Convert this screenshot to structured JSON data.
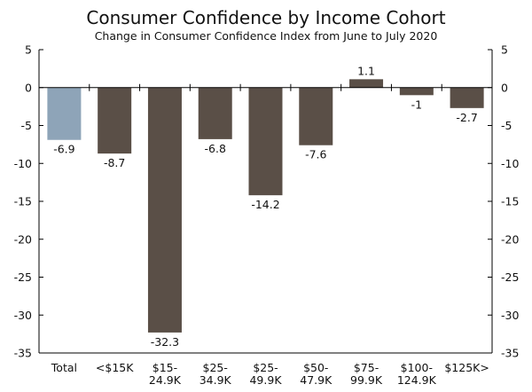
{
  "chart_data": {
    "type": "bar",
    "title": "Consumer Confidence by Income Cohort",
    "subtitle": "Change in Consumer Confidence Index from June to July 2020",
    "xlabel": "",
    "ylabel": "",
    "ylim": [
      -35,
      5
    ],
    "yticks": [
      "5",
      "0",
      "-5",
      "-10",
      "-15",
      "-20",
      "-25",
      "-30",
      "-35"
    ],
    "ytick_values": [
      5,
      0,
      -5,
      -10,
      -15,
      -20,
      -25,
      -30,
      -35
    ],
    "categories": [
      [
        "Total"
      ],
      [
        "<$15K"
      ],
      [
        "$15-",
        "24.9K"
      ],
      [
        "$25-",
        "34.9K"
      ],
      [
        "$25-",
        "49.9K"
      ],
      [
        "$50-",
        "47.9K"
      ],
      [
        "$75-",
        "99.9K"
      ],
      [
        "$100-",
        "124.9K"
      ],
      [
        "$125K>"
      ]
    ],
    "values": [
      -6.9,
      -8.7,
      -32.3,
      -6.8,
      -14.2,
      -7.6,
      1.1,
      -1,
      -2.7
    ],
    "value_labels": [
      "-6.9",
      "-8.7",
      "-32.3",
      "-6.8",
      "-14.2",
      "-7.6",
      "1.1",
      "-1",
      "-2.7"
    ],
    "colors": {
      "highlight": "#8ea4b8",
      "bar": "#5a4f47",
      "axis": "#000000"
    }
  }
}
